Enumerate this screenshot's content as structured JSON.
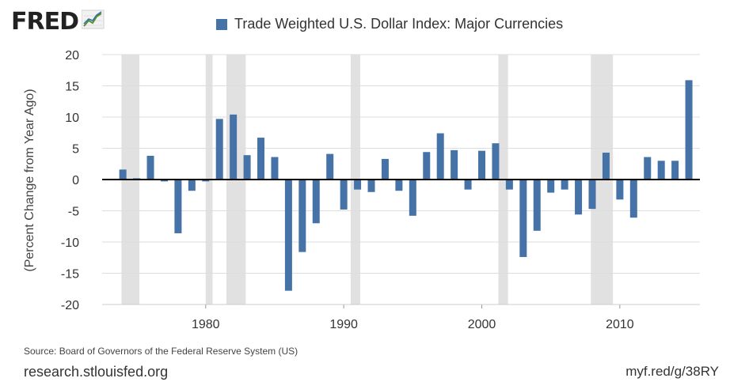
{
  "header": {
    "logo_text": "FRED",
    "logo_icon": "trend-line-icon"
  },
  "footer": {
    "source": "Source: Board of Governors of the Federal Reserve System (US)",
    "site": "research.stlouisfed.org",
    "shortlink": "myf.red/g/38RY"
  },
  "colors": {
    "bar": "#4572a7",
    "recession": "#e1e1e1",
    "grid": "#dddddd",
    "zero_line": "#000000"
  },
  "chart_data": {
    "type": "bar",
    "title": "",
    "ylabel": "(Percent Change from Year Ago)",
    "xlabel": "",
    "xlim": [
      1972.5,
      2015.8
    ],
    "ylim": [
      -20,
      20
    ],
    "yticks": [
      20,
      15,
      10,
      5,
      0,
      -5,
      -10,
      -15,
      -20
    ],
    "xticks": [
      1980,
      1990,
      2000,
      2010
    ],
    "grid": true,
    "legend_position": "top",
    "recession_shading": [
      [
        1973.9,
        1975.2
      ],
      [
        1980.0,
        1980.5
      ],
      [
        1981.5,
        1982.9
      ],
      [
        1990.5,
        1991.2
      ],
      [
        2001.2,
        2001.9
      ],
      [
        2007.9,
        2009.5
      ]
    ],
    "series": [
      {
        "name": "Trade Weighted U.S. Dollar Index: Major Currencies",
        "x": [
          1974,
          1975,
          1976,
          1977,
          1978,
          1979,
          1980,
          1981,
          1982,
          1983,
          1984,
          1985,
          1986,
          1987,
          1988,
          1989,
          1990,
          1991,
          1992,
          1993,
          1994,
          1995,
          1996,
          1997,
          1998,
          1999,
          2000,
          2001,
          2002,
          2003,
          2004,
          2005,
          2006,
          2007,
          2008,
          2009,
          2010,
          2011,
          2012,
          2013,
          2014,
          2015
        ],
        "values": [
          1.6,
          0.2,
          3.8,
          -0.3,
          -8.6,
          -1.8,
          -0.3,
          9.7,
          10.4,
          3.9,
          6.7,
          3.6,
          -17.8,
          -11.6,
          -7.0,
          4.1,
          -4.8,
          -1.6,
          -2.0,
          3.3,
          -1.8,
          -5.8,
          4.4,
          7.4,
          4.7,
          -1.6,
          4.6,
          5.8,
          -1.6,
          -12.4,
          -8.2,
          -2.1,
          -1.6,
          -5.6,
          -4.7,
          4.3,
          -3.2,
          -6.1,
          3.6,
          3.0,
          3.0,
          15.9
        ]
      }
    ]
  }
}
